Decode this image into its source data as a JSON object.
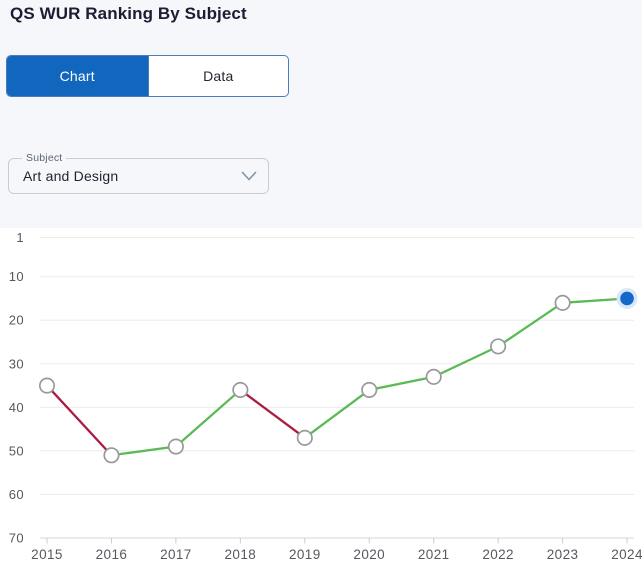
{
  "header": {
    "title": "QS WUR Ranking By Subject"
  },
  "view_toggle": {
    "chart_tab": "Chart",
    "data_tab": "Data",
    "active_tab": "Chart"
  },
  "subject_filter": {
    "label": "Subject",
    "value": "Art and Design",
    "icon": "chevron-down-icon"
  },
  "colors": {
    "accent_blue": "#1166bd",
    "toggle_border": "#4a7db8",
    "improve_green": "#5aba56",
    "decline_red": "#a91d3f",
    "marker_fill": "#ffffff",
    "marker_stroke": "#999999",
    "current_dot": "#1568c8",
    "current_halo": "#d9e8f8",
    "gridline": "#ebebeb",
    "axis_line": "#d4d4d4",
    "tick_mark": "#cccccc",
    "axis_text": "#55595e",
    "page_bg": "#f5f7fa",
    "chart_bg": "#ffffff"
  },
  "chart_data": {
    "type": "line",
    "title": "QS WUR Ranking By Subject - Art and Design",
    "x": [
      2015,
      2016,
      2017,
      2018,
      2019,
      2020,
      2021,
      2022,
      2023,
      2024
    ],
    "series": [
      {
        "name": "Art and Design rank",
        "values": [
          35,
          51,
          49,
          36,
          47,
          36,
          33,
          26,
          16,
          15
        ]
      }
    ],
    "y_ticks": [
      1,
      10,
      20,
      30,
      40,
      50,
      60,
      70
    ],
    "ylim": [
      1,
      70
    ],
    "y_axis_inverted": true,
    "grid": "horizontal",
    "legend": "none",
    "segment_color_rule": "green when rank improves (value decreases), red when rank worsens (value increases)",
    "last_point_style": "filled blue dot with light halo marking current year"
  }
}
